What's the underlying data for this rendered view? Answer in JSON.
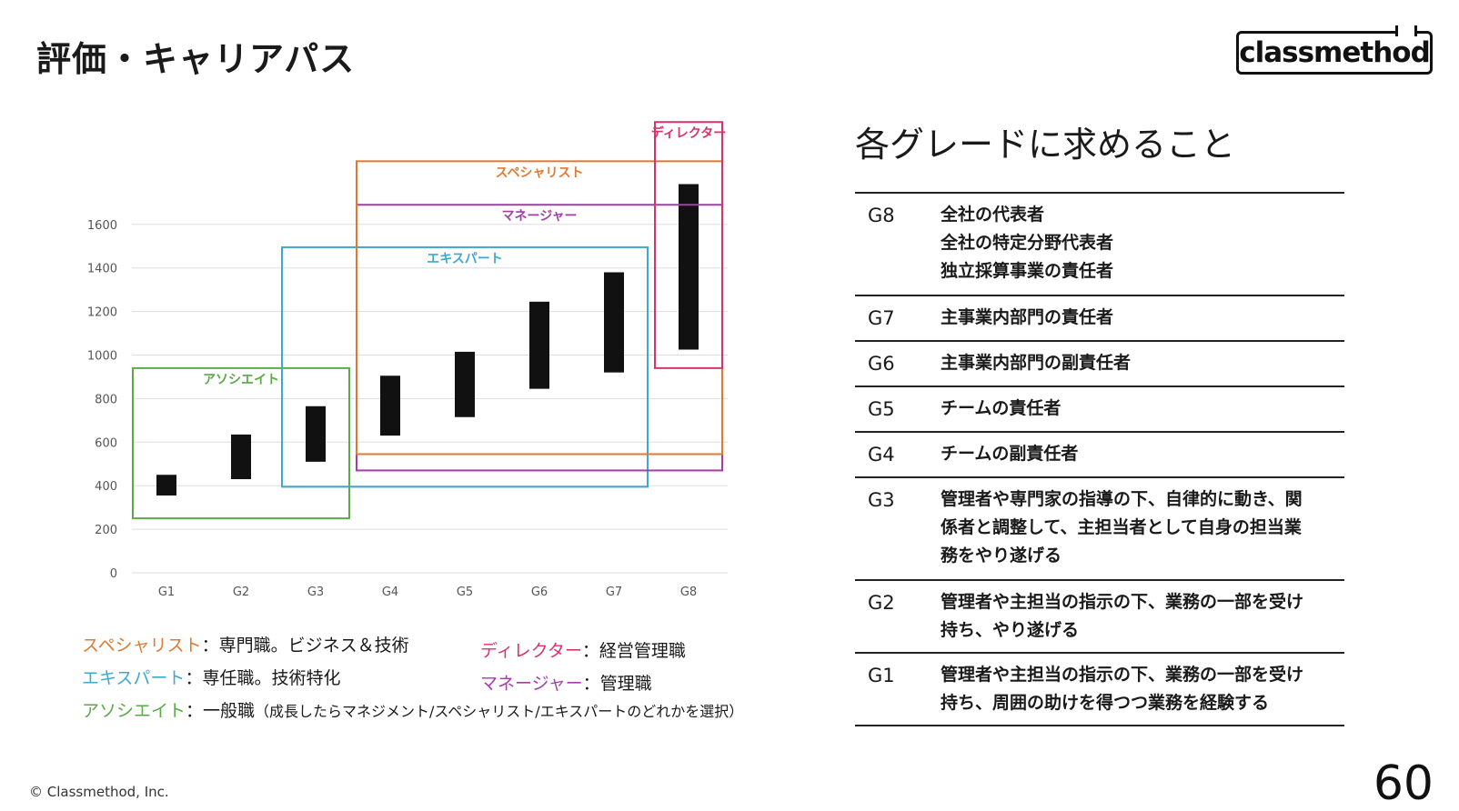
{
  "header": {
    "title": "評価・キャリアパス",
    "logo_text": "classmethod"
  },
  "chart_data": {
    "type": "bar",
    "chart_style": "floating range bars",
    "categories": [
      "G1",
      "G2",
      "G3",
      "G4",
      "G5",
      "G6",
      "G7",
      "G8"
    ],
    "ranges": [
      [
        355,
        450
      ],
      [
        430,
        635
      ],
      [
        510,
        765
      ],
      [
        630,
        905
      ],
      [
        715,
        1015
      ],
      [
        845,
        1245
      ],
      [
        920,
        1380
      ],
      [
        1025,
        1785
      ]
    ],
    "y_ticks": [
      0,
      200,
      400,
      600,
      800,
      1000,
      1200,
      1400,
      1600
    ],
    "ylim": [
      0,
      1600
    ],
    "grid": true,
    "bar_color": "#111111",
    "groups": [
      {
        "name": "アソシエイト",
        "color": "#5aaa46",
        "from": "G1",
        "to": "G3",
        "ymin": 250,
        "ymax": 940
      },
      {
        "name": "エキスパート",
        "color": "#3ca9d3",
        "from": "G3",
        "to": "G7",
        "ymin": 395,
        "ymax": 1495
      },
      {
        "name": "マネージャー",
        "color": "#a23fa6",
        "from": "G4",
        "to": "G8",
        "ymin": 470,
        "ymax": 1690
      },
      {
        "name": "スペシャリスト",
        "color": "#e07a31",
        "from": "G4",
        "to": "G8",
        "ymin": 545,
        "ymax": 1890
      },
      {
        "name": "ディレクター",
        "color": "#d6336c",
        "from": "G8",
        "to": "G8",
        "ymin": 940,
        "ymax": 2070
      }
    ]
  },
  "legend": {
    "specialist": {
      "role": "スペシャリスト",
      "desc": "：専門職。ビジネス＆技術",
      "color": "#e07a31"
    },
    "expert": {
      "role": "エキスパート",
      "desc": "：専任職。技術特化",
      "color": "#3ca9d3"
    },
    "associate": {
      "role": "アソシエイト",
      "desc": "：一般職",
      "note": "（成長したらマネジメント/スペシャリスト/エキスパートのどれかを選択）",
      "color": "#5aaa46"
    },
    "director": {
      "role": "ディレクター",
      "desc": "：経営管理職",
      "color": "#d6336c"
    },
    "manager": {
      "role": "マネージャー",
      "desc": "：管理職",
      "color": "#a23fa6"
    }
  },
  "grades_panel": {
    "title": "各グレードに求めること",
    "rows": [
      {
        "grade": "G8",
        "lines": [
          "全社の代表者",
          "全社の特定分野代表者",
          "独立採算事業の責任者"
        ]
      },
      {
        "grade": "G7",
        "lines": [
          "主事業内部門の責任者"
        ]
      },
      {
        "grade": "G6",
        "lines": [
          "主事業内部門の副責任者"
        ]
      },
      {
        "grade": "G5",
        "lines": [
          "チームの責任者"
        ]
      },
      {
        "grade": "G4",
        "lines": [
          "チームの副責任者"
        ]
      },
      {
        "grade": "G3",
        "lines": [
          "管理者や専門家の指導の下、自律的に動き、関",
          "係者と調整して、主担当者として自身の担当業",
          "務をやり遂げる"
        ]
      },
      {
        "grade": "G2",
        "lines": [
          "管理者や主担当の指示の下、業務の一部を受け",
          "持ち、やり遂げる"
        ]
      },
      {
        "grade": "G1",
        "lines": [
          "管理者や主担当の指示の下、業務の一部を受け",
          "持ち、周囲の助けを得つつ業務を経験する"
        ]
      }
    ]
  },
  "footer": {
    "copyright": "© Classmethod, Inc.",
    "page_number": "60"
  }
}
